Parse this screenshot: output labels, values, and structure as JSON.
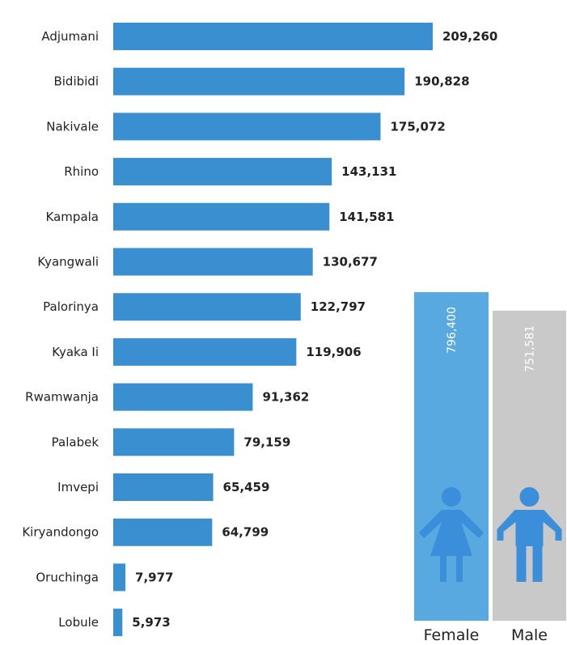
{
  "chart_data": [
    {
      "type": "bar",
      "orientation": "horizontal",
      "categories": [
        "Adjumani",
        "Bidibidi",
        "Nakivale",
        "Rhino",
        "Kampala",
        "Kyangwali",
        "Palorinya",
        "Kyaka Ii",
        "Rwamwanja",
        "Palabek",
        "Imvepi",
        "Kiryandongo",
        "Oruchinga",
        "Lobule"
      ],
      "values": [
        209260,
        190828,
        175072,
        143131,
        141581,
        130677,
        122797,
        119906,
        91362,
        79159,
        65459,
        64799,
        7977,
        5973
      ],
      "value_labels": [
        "209,260",
        "190,828",
        "175,072",
        "143,131",
        "141,581",
        "130,677",
        "122,797",
        "119,906",
        "91,362",
        "79,159",
        "65,459",
        "64,799",
        "7,977",
        "5,973"
      ],
      "xlim": [
        0,
        230000
      ],
      "color": "#3a8fd0",
      "grid": false
    },
    {
      "type": "bar",
      "categories": [
        "Female",
        "Male"
      ],
      "values": [
        796400,
        751581
      ],
      "value_labels": [
        "796,400",
        "751,581"
      ],
      "colors": [
        "#58a9e0",
        "#c9c9c9"
      ],
      "icons": [
        "female-person-icon",
        "male-person-icon"
      ],
      "icon_color": "#3b8fda"
    }
  ]
}
